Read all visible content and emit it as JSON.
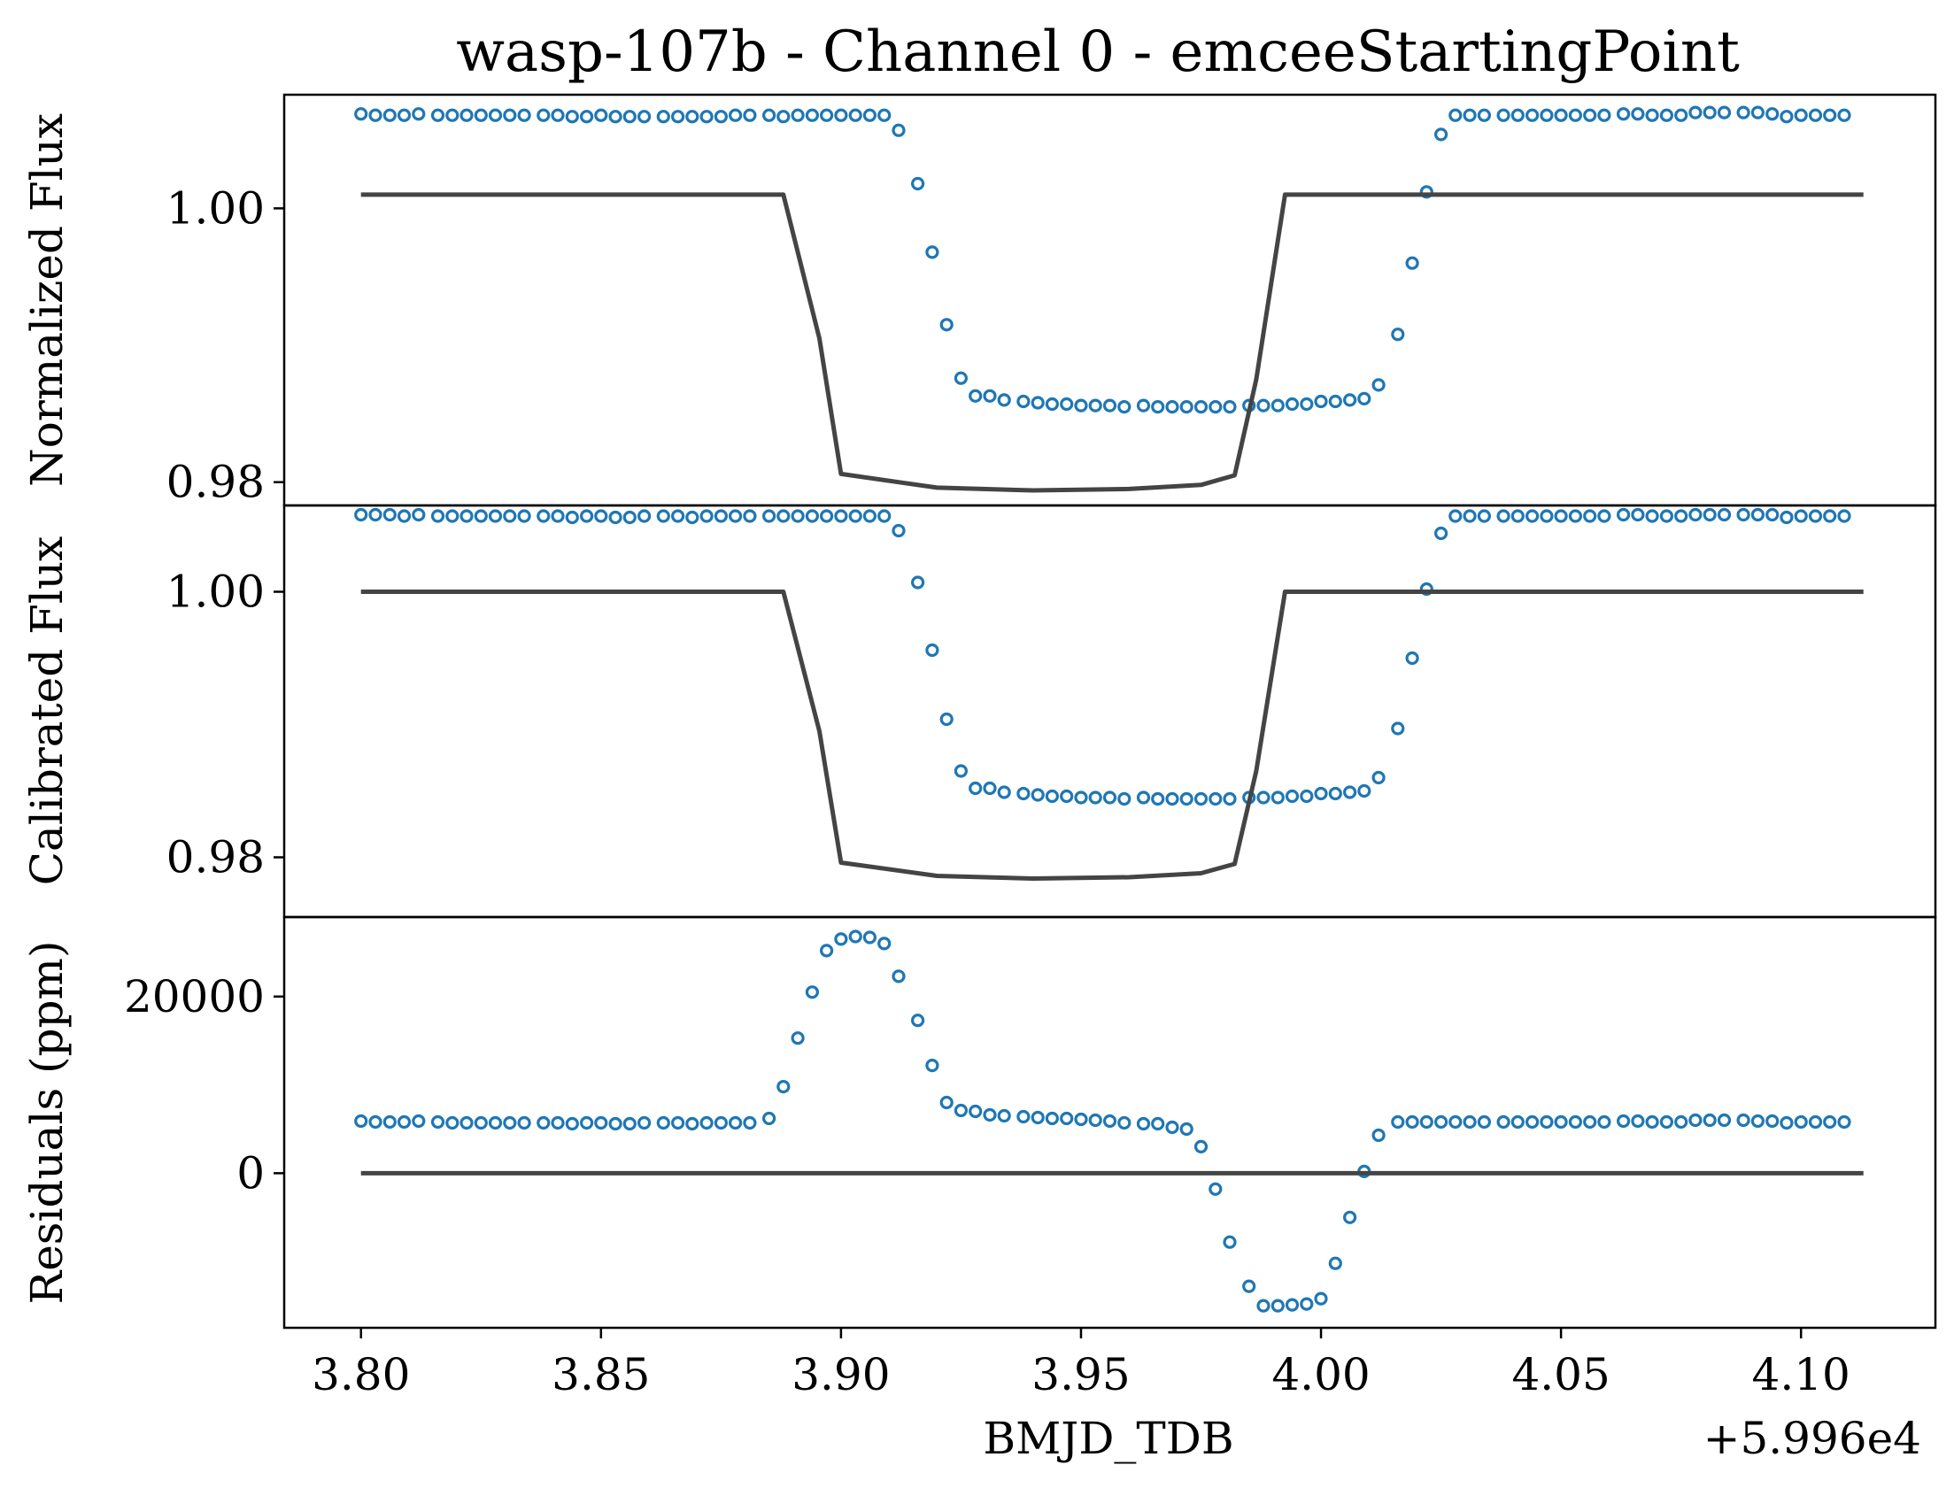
{
  "figure": {
    "title": "wasp-107b - Channel 0 - emceeStartingPoint",
    "xlabel": "BMJD_TDB",
    "x_offset_label": "+5.996e4"
  },
  "colors": {
    "data": "#1f77b4",
    "model": "#444444"
  },
  "chart_data": [
    {
      "type": "scatter",
      "panel": "top",
      "ylabel": "Normalized Flux",
      "ylim": [
        0.9783,
        1.0083
      ],
      "yticks": [
        0.98,
        1.0
      ],
      "ytick_labels": [
        "0.98",
        "1.00"
      ],
      "xlim": [
        3.784,
        4.128
      ],
      "series": [
        {
          "kind": "data",
          "marker": "open-circle",
          "x": [
            3.8,
            3.803,
            3.806,
            3.809,
            3.812,
            3.816,
            3.819,
            3.822,
            3.825,
            3.828,
            3.831,
            3.834,
            3.838,
            3.841,
            3.844,
            3.847,
            3.85,
            3.853,
            3.856,
            3.859,
            3.863,
            3.866,
            3.869,
            3.872,
            3.875,
            3.878,
            3.881,
            3.885,
            3.888,
            3.891,
            3.894,
            3.897,
            3.9,
            3.903,
            3.906,
            3.909,
            3.912,
            3.916,
            3.919,
            3.922,
            3.925,
            3.928,
            3.931,
            3.934,
            3.938,
            3.941,
            3.944,
            3.947,
            3.95,
            3.953,
            3.956,
            3.959,
            3.963,
            3.966,
            3.969,
            3.972,
            3.975,
            3.978,
            3.981,
            3.985,
            3.988,
            3.991,
            3.994,
            3.997,
            4.0,
            4.003,
            4.006,
            4.009,
            4.012,
            4.016,
            4.019,
            4.022,
            4.025,
            4.028,
            4.031,
            4.034,
            4.038,
            4.041,
            4.044,
            4.047,
            4.05,
            4.053,
            4.056,
            4.059,
            4.063,
            4.066,
            4.069,
            4.072,
            4.075,
            4.078,
            4.081,
            4.084,
            4.088,
            4.091,
            4.094,
            4.097,
            4.1,
            4.103,
            4.106,
            4.109
          ],
          "y": [
            1.0069,
            1.0068,
            1.0068,
            1.0068,
            1.0069,
            1.0068,
            1.0068,
            1.0068,
            1.0068,
            1.0068,
            1.0068,
            1.0068,
            1.0068,
            1.0068,
            1.0067,
            1.0067,
            1.0068,
            1.0067,
            1.0067,
            1.0067,
            1.0067,
            1.0067,
            1.0067,
            1.0067,
            1.0067,
            1.0068,
            1.0068,
            1.0068,
            1.0067,
            1.0068,
            1.0068,
            1.0068,
            1.0068,
            1.0068,
            1.0068,
            1.0068,
            1.0057,
            1.0018,
            0.9968,
            0.9915,
            0.9876,
            0.9863,
            0.9863,
            0.986,
            0.9859,
            0.9858,
            0.9857,
            0.9857,
            0.9856,
            0.9856,
            0.9856,
            0.9855,
            0.9856,
            0.9855,
            0.9855,
            0.9855,
            0.9855,
            0.9855,
            0.9855,
            0.9856,
            0.9856,
            0.9856,
            0.9857,
            0.9857,
            0.9859,
            0.9859,
            0.986,
            0.9861,
            0.9871,
            0.9908,
            0.996,
            1.0012,
            1.0054,
            1.0068,
            1.0068,
            1.0068,
            1.0068,
            1.0068,
            1.0068,
            1.0068,
            1.0068,
            1.0068,
            1.0068,
            1.0068,
            1.0069,
            1.0069,
            1.0068,
            1.0068,
            1.0068,
            1.007,
            1.007,
            1.007,
            1.007,
            1.007,
            1.0069,
            1.0067,
            1.0068,
            1.0068,
            1.0068,
            1.0068
          ]
        },
        {
          "kind": "model",
          "x": [
            3.8,
            3.888,
            3.8955,
            3.9,
            3.92,
            3.94,
            3.96,
            3.975,
            3.982,
            3.9865,
            3.9925,
            4.025,
            4.113
          ],
          "y": [
            1.001,
            1.001,
            0.9905,
            0.9806,
            0.9796,
            0.9794,
            0.9795,
            0.9798,
            0.9805,
            0.9875,
            1.001,
            1.001,
            1.001
          ]
        }
      ]
    },
    {
      "type": "scatter",
      "panel": "middle",
      "ylabel": "Calibrated Flux",
      "ylim": [
        0.9755,
        1.0065
      ],
      "yticks": [
        0.98,
        1.0
      ],
      "ytick_labels": [
        "0.98",
        "1.00"
      ],
      "xlim": [
        3.784,
        4.128
      ],
      "series": [
        {
          "kind": "data",
          "marker": "open-circle",
          "x": [
            3.8,
            3.803,
            3.806,
            3.809,
            3.812,
            3.816,
            3.819,
            3.822,
            3.825,
            3.828,
            3.831,
            3.834,
            3.838,
            3.841,
            3.844,
            3.847,
            3.85,
            3.853,
            3.856,
            3.859,
            3.863,
            3.866,
            3.869,
            3.872,
            3.875,
            3.878,
            3.881,
            3.885,
            3.888,
            3.891,
            3.894,
            3.897,
            3.9,
            3.903,
            3.906,
            3.909,
            3.912,
            3.916,
            3.919,
            3.922,
            3.925,
            3.928,
            3.931,
            3.934,
            3.938,
            3.941,
            3.944,
            3.947,
            3.95,
            3.953,
            3.956,
            3.959,
            3.963,
            3.966,
            3.969,
            3.972,
            3.975,
            3.978,
            3.981,
            3.985,
            3.988,
            3.991,
            3.994,
            3.997,
            4.0,
            4.003,
            4.006,
            4.009,
            4.012,
            4.016,
            4.019,
            4.022,
            4.025,
            4.028,
            4.031,
            4.034,
            4.038,
            4.041,
            4.044,
            4.047,
            4.05,
            4.053,
            4.056,
            4.059,
            4.063,
            4.066,
            4.069,
            4.072,
            4.075,
            4.078,
            4.081,
            4.084,
            4.088,
            4.091,
            4.094,
            4.097,
            4.1,
            4.103,
            4.106,
            4.109
          ],
          "y": [
            1.0058,
            1.0058,
            1.0058,
            1.0057,
            1.0058,
            1.0057,
            1.0057,
            1.0057,
            1.0057,
            1.0057,
            1.0057,
            1.0057,
            1.0057,
            1.0057,
            1.0056,
            1.0057,
            1.0057,
            1.0056,
            1.0056,
            1.0057,
            1.0057,
            1.0057,
            1.0056,
            1.0057,
            1.0057,
            1.0057,
            1.0057,
            1.0057,
            1.0057,
            1.0057,
            1.0057,
            1.0057,
            1.0057,
            1.0057,
            1.0057,
            1.0057,
            1.0046,
            1.0007,
            0.9956,
            0.9904,
            0.9865,
            0.9852,
            0.9852,
            0.9849,
            0.9848,
            0.9847,
            0.9846,
            0.9846,
            0.9845,
            0.9845,
            0.9845,
            0.9844,
            0.9845,
            0.9844,
            0.9844,
            0.9844,
            0.9844,
            0.9844,
            0.9844,
            0.9845,
            0.9845,
            0.9845,
            0.9846,
            0.9846,
            0.9848,
            0.9848,
            0.9849,
            0.985,
            0.986,
            0.9897,
            0.995,
            1.0002,
            1.0044,
            1.0057,
            1.0057,
            1.0057,
            1.0057,
            1.0057,
            1.0057,
            1.0057,
            1.0057,
            1.0057,
            1.0057,
            1.0057,
            1.0058,
            1.0058,
            1.0057,
            1.0057,
            1.0057,
            1.0058,
            1.0058,
            1.0058,
            1.0058,
            1.0058,
            1.0058,
            1.0056,
            1.0057,
            1.0057,
            1.0057,
            1.0057
          ]
        },
        {
          "kind": "model",
          "x": [
            3.8,
            3.888,
            3.8955,
            3.9,
            3.92,
            3.94,
            3.96,
            3.975,
            3.982,
            3.9865,
            3.9925,
            4.025,
            4.113
          ],
          "y": [
            1.0,
            1.0,
            0.9895,
            0.9796,
            0.9786,
            0.9784,
            0.9785,
            0.9788,
            0.9795,
            0.9865,
            1.0,
            1.0,
            1.0
          ]
        }
      ]
    },
    {
      "type": "scatter",
      "panel": "bottom",
      "ylabel": "Residuals (ppm)",
      "ylim": [
        -17500,
        29000
      ],
      "yticks": [
        0,
        20000
      ],
      "ytick_labels": [
        "0",
        "20000"
      ],
      "xlim": [
        3.784,
        4.128
      ],
      "xticks": [
        3.8,
        3.85,
        3.9,
        3.95,
        4.0,
        4.05,
        4.1
      ],
      "xtick_labels": [
        "3.80",
        "3.85",
        "3.90",
        "3.95",
        "4.00",
        "4.05",
        "4.10"
      ],
      "series": [
        {
          "kind": "data",
          "marker": "open-circle",
          "x": [
            3.8,
            3.803,
            3.806,
            3.809,
            3.812,
            3.816,
            3.819,
            3.822,
            3.825,
            3.828,
            3.831,
            3.834,
            3.838,
            3.841,
            3.844,
            3.847,
            3.85,
            3.853,
            3.856,
            3.859,
            3.863,
            3.866,
            3.869,
            3.872,
            3.875,
            3.878,
            3.881,
            3.885,
            3.888,
            3.891,
            3.894,
            3.897,
            3.9,
            3.903,
            3.906,
            3.909,
            3.912,
            3.916,
            3.919,
            3.922,
            3.925,
            3.928,
            3.931,
            3.934,
            3.938,
            3.941,
            3.944,
            3.947,
            3.95,
            3.953,
            3.956,
            3.959,
            3.963,
            3.966,
            3.969,
            3.972,
            3.975,
            3.978,
            3.981,
            3.985,
            3.988,
            3.991,
            3.994,
            3.997,
            4.0,
            4.003,
            4.006,
            4.009,
            4.012,
            4.016,
            4.019,
            4.022,
            4.025,
            4.028,
            4.031,
            4.034,
            4.038,
            4.041,
            4.044,
            4.047,
            4.05,
            4.053,
            4.056,
            4.059,
            4.063,
            4.066,
            4.069,
            4.072,
            4.075,
            4.078,
            4.081,
            4.084,
            4.088,
            4.091,
            4.094,
            4.097,
            4.1,
            4.103,
            4.106,
            4.109
          ],
          "y": [
            5900,
            5800,
            5800,
            5800,
            5900,
            5800,
            5700,
            5700,
            5700,
            5700,
            5700,
            5700,
            5700,
            5700,
            5600,
            5700,
            5700,
            5600,
            5600,
            5700,
            5700,
            5700,
            5600,
            5700,
            5700,
            5700,
            5700,
            6200,
            9800,
            15300,
            20500,
            25200,
            26500,
            26800,
            26700,
            26000,
            22300,
            17300,
            12200,
            8000,
            7100,
            7000,
            6600,
            6500,
            6400,
            6300,
            6200,
            6200,
            6100,
            6000,
            5900,
            5700,
            5600,
            5600,
            5200,
            5000,
            3000,
            -1800,
            -7800,
            -12800,
            -15000,
            -15000,
            -14900,
            -14800,
            -14200,
            -10200,
            -5000,
            200,
            4300,
            5800,
            5800,
            5800,
            5800,
            5800,
            5800,
            5800,
            5800,
            5800,
            5800,
            5800,
            5800,
            5800,
            5800,
            5800,
            5900,
            5900,
            5800,
            5800,
            5800,
            6000,
            6000,
            6000,
            6000,
            5900,
            5900,
            5700,
            5800,
            5800,
            5800,
            5800
          ]
        },
        {
          "kind": "model",
          "x": [
            3.8,
            4.113
          ],
          "y": [
            0,
            0
          ]
        }
      ]
    }
  ]
}
